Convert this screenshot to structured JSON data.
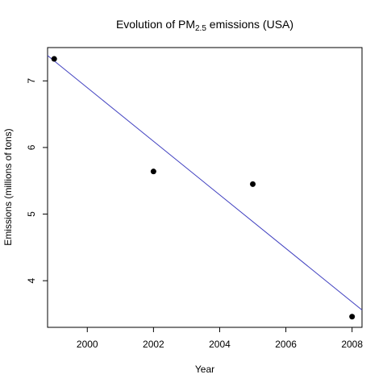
{
  "chart_data": {
    "type": "scatter",
    "title": {
      "prefix": "Evolution of PM",
      "subscript": "2.5",
      "suffix": " emissions (USA)"
    },
    "xlabel": "Year",
    "ylabel": "Emissions (millions of tons)",
    "xlim": [
      1998.8,
      2008.3
    ],
    "ylim": [
      3.3,
      7.5
    ],
    "xticks": [
      2000,
      2002,
      2004,
      2006,
      2008
    ],
    "yticks": [
      4,
      5,
      6,
      7
    ],
    "grid": false,
    "series": [
      {
        "x": [
          1999,
          2002,
          2005,
          2008
        ],
        "y": [
          7.33,
          5.64,
          5.45,
          3.46
        ]
      }
    ],
    "trendline": {
      "color": "#4040c0",
      "start": [
        1998.8,
        7.38
      ],
      "end": [
        2008.3,
        3.56
      ]
    },
    "point_color": "#000000"
  }
}
